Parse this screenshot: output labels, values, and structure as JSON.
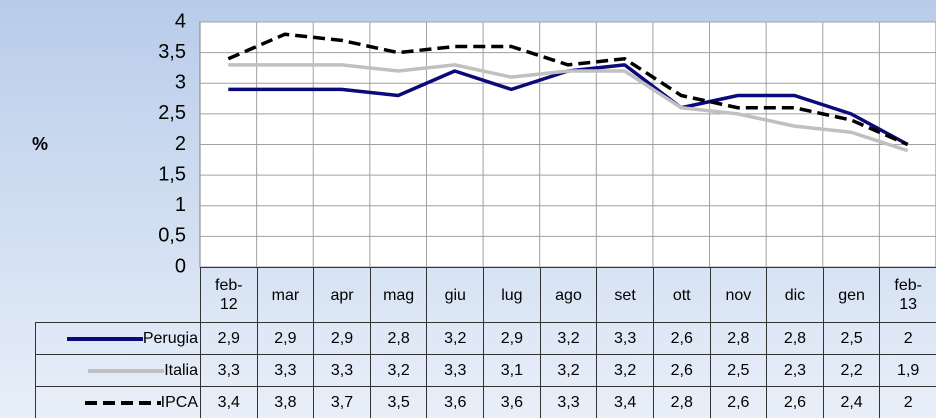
{
  "chart_data": {
    "type": "line",
    "y_label": "%",
    "categories": [
      "feb-12",
      "mar",
      "apr",
      "mag",
      "giu",
      "lug",
      "ago",
      "set",
      "ott",
      "nov",
      "dic",
      "gen",
      "feb-13"
    ],
    "series": [
      {
        "name": "Perugia",
        "color": "#0a0a7a",
        "dashed": false,
        "values": [
          2.9,
          2.9,
          2.9,
          2.8,
          3.2,
          2.9,
          3.2,
          3.3,
          2.6,
          2.8,
          2.8,
          2.5,
          2
        ],
        "value_labels": [
          "2,9",
          "2,9",
          "2,9",
          "2,8",
          "3,2",
          "2,9",
          "3,2",
          "3,3",
          "2,6",
          "2,8",
          "2,8",
          "2,5",
          "2"
        ]
      },
      {
        "name": "Italia",
        "color": "#c0c0c0",
        "dashed": false,
        "values": [
          3.3,
          3.3,
          3.3,
          3.2,
          3.3,
          3.1,
          3.2,
          3.2,
          2.6,
          2.5,
          2.3,
          2.2,
          1.9
        ],
        "value_labels": [
          "3,3",
          "3,3",
          "3,3",
          "3,2",
          "3,3",
          "3,1",
          "3,2",
          "3,2",
          "2,6",
          "2,5",
          "2,3",
          "2,2",
          "1,9"
        ]
      },
      {
        "name": "IPCA",
        "color": "#000000",
        "dashed": true,
        "values": [
          3.4,
          3.8,
          3.7,
          3.5,
          3.6,
          3.6,
          3.3,
          3.4,
          2.8,
          2.6,
          2.6,
          2.4,
          2
        ],
        "value_labels": [
          "3,4",
          "3,8",
          "3,7",
          "3,5",
          "3,6",
          "3,6",
          "3,3",
          "3,4",
          "2,8",
          "2,6",
          "2,6",
          "2,4",
          "2"
        ]
      }
    ],
    "ylim": [
      0,
      4
    ],
    "yticks": [
      0,
      {
        "value": 0.5,
        "label": "0,5"
      },
      1,
      {
        "value": 1.5,
        "label": "1,5"
      },
      2,
      {
        "value": 2.5,
        "label": "2,5"
      },
      3,
      {
        "value": 3.5,
        "label": "3,5"
      },
      4
    ],
    "grid": true
  }
}
